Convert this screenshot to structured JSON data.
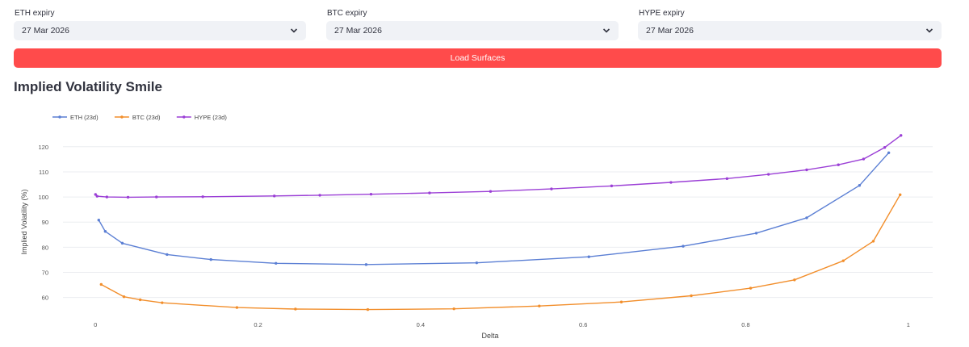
{
  "controls": [
    {
      "label": "ETH expiry",
      "value": "27 Mar 2026"
    },
    {
      "label": "BTC expiry",
      "value": "27 Mar 2026"
    },
    {
      "label": "HYPE expiry",
      "value": "27 Mar 2026"
    }
  ],
  "icons": {
    "dropdown": "chevron-down-icon"
  },
  "button": {
    "label": "Load Surfaces",
    "color": "#ff4b4b"
  },
  "heading": "Implied Volatility Smile",
  "chart_data": {
    "type": "line",
    "xlabel": "Delta",
    "ylabel": "Implied Volatility (%)",
    "xlim": [
      -0.04,
      1.03
    ],
    "ylim": [
      52.5,
      127
    ],
    "xticks": [
      0,
      0.2,
      0.4,
      0.6,
      0.8,
      1
    ],
    "xtick_labels": [
      "0",
      "0.2",
      "0.4",
      "0.6",
      "0.8",
      "1"
    ],
    "yticks": [
      60,
      70,
      80,
      90,
      100,
      110,
      120
    ],
    "grid": true,
    "legend_position": "top-left",
    "series": [
      {
        "name": "ETH (23d)",
        "color": "#5b7fd4",
        "x": [
          0.004,
          0.012,
          0.033,
          0.088,
          0.142,
          0.222,
          0.333,
          0.469,
          0.607,
          0.723,
          0.813,
          0.875,
          0.94,
          0.976
        ],
        "y": [
          90.8,
          86.3,
          81.6,
          77.1,
          75.1,
          73.6,
          73.1,
          73.8,
          76.2,
          80.4,
          85.6,
          91.7,
          104.6,
          117.6
        ]
      },
      {
        "name": "BTC (23d)",
        "color": "#f28e2b",
        "x": [
          0.007,
          0.035,
          0.055,
          0.082,
          0.174,
          0.246,
          0.335,
          0.441,
          0.546,
          0.647,
          0.733,
          0.806,
          0.86,
          0.92,
          0.957,
          0.99
        ],
        "y": [
          65.2,
          60.3,
          59.1,
          57.9,
          56.0,
          55.4,
          55.2,
          55.5,
          56.6,
          58.2,
          60.7,
          63.7,
          67.0,
          74.6,
          82.4,
          100.9
        ]
      },
      {
        "name": "HYPE (23d)",
        "color": "#9b3fd6",
        "x": [
          0.0,
          0.002,
          0.014,
          0.04,
          0.075,
          0.132,
          0.22,
          0.276,
          0.339,
          0.411,
          0.486,
          0.561,
          0.635,
          0.708,
          0.777,
          0.828,
          0.875,
          0.914,
          0.945,
          0.971,
          0.991
        ],
        "y": [
          101.0,
          100.3,
          100.0,
          99.9,
          100.0,
          100.1,
          100.4,
          100.7,
          101.1,
          101.6,
          102.2,
          103.2,
          104.4,
          105.8,
          107.3,
          109.0,
          110.8,
          112.8,
          115.1,
          119.7,
          124.5
        ]
      }
    ]
  }
}
